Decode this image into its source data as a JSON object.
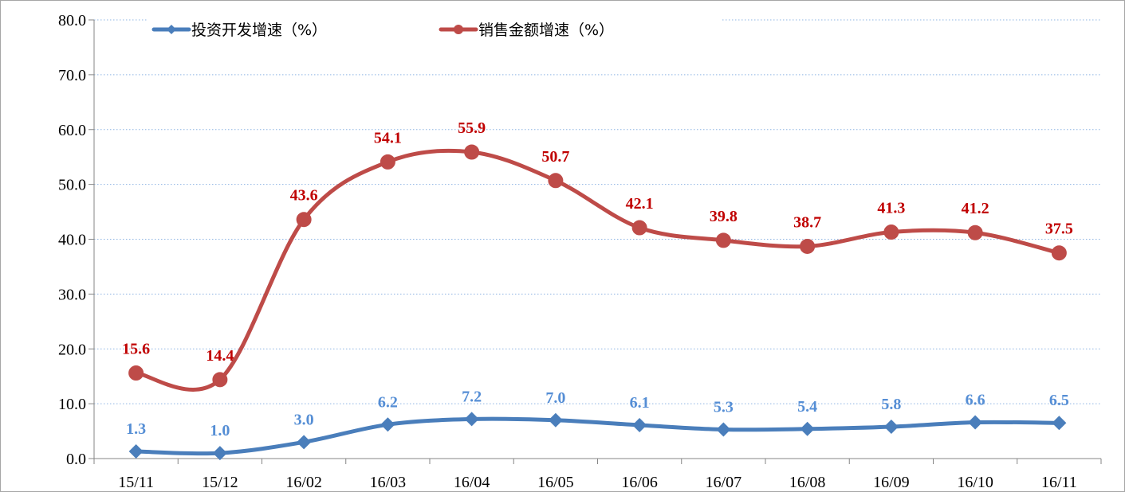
{
  "chart_data": {
    "type": "line",
    "title": "",
    "xlabel": "",
    "ylabel": "",
    "categories": [
      "15/11",
      "15/12",
      "16/02",
      "16/03",
      "16/04",
      "16/05",
      "16/06",
      "16/07",
      "16/08",
      "16/09",
      "16/10",
      "16/11"
    ],
    "ylim": [
      0,
      80
    ],
    "yticks": [
      "0.0",
      "10.0",
      "20.0",
      "30.0",
      "40.0",
      "50.0",
      "60.0",
      "70.0",
      "80.0"
    ],
    "grid": true,
    "smooth": true,
    "legend_position": "top",
    "series": [
      {
        "name": "投资开发增速（%）",
        "color": "#4a7ebb",
        "label_color": "#558ed5",
        "marker": "diamond",
        "values": [
          1.3,
          1.0,
          3.0,
          6.2,
          7.2,
          7.0,
          6.1,
          5.3,
          5.4,
          5.8,
          6.6,
          6.5
        ],
        "labels": [
          "1.3",
          "1.0",
          "3.0",
          "6.2",
          "7.2",
          "7.0",
          "6.1",
          "5.3",
          "5.4",
          "5.8",
          "6.6",
          "6.5"
        ]
      },
      {
        "name": "销售金额增速（%）",
        "color": "#be4b48",
        "label_color": "#c00000",
        "marker": "circle",
        "values": [
          15.6,
          14.4,
          43.6,
          54.1,
          55.9,
          50.7,
          42.1,
          39.8,
          38.7,
          41.3,
          41.2,
          37.5
        ],
        "labels": [
          "15.6",
          "14.4",
          "43.6",
          "54.1",
          "55.9",
          "50.7",
          "42.1",
          "39.8",
          "38.7",
          "41.3",
          "41.2",
          "37.5"
        ]
      }
    ]
  }
}
